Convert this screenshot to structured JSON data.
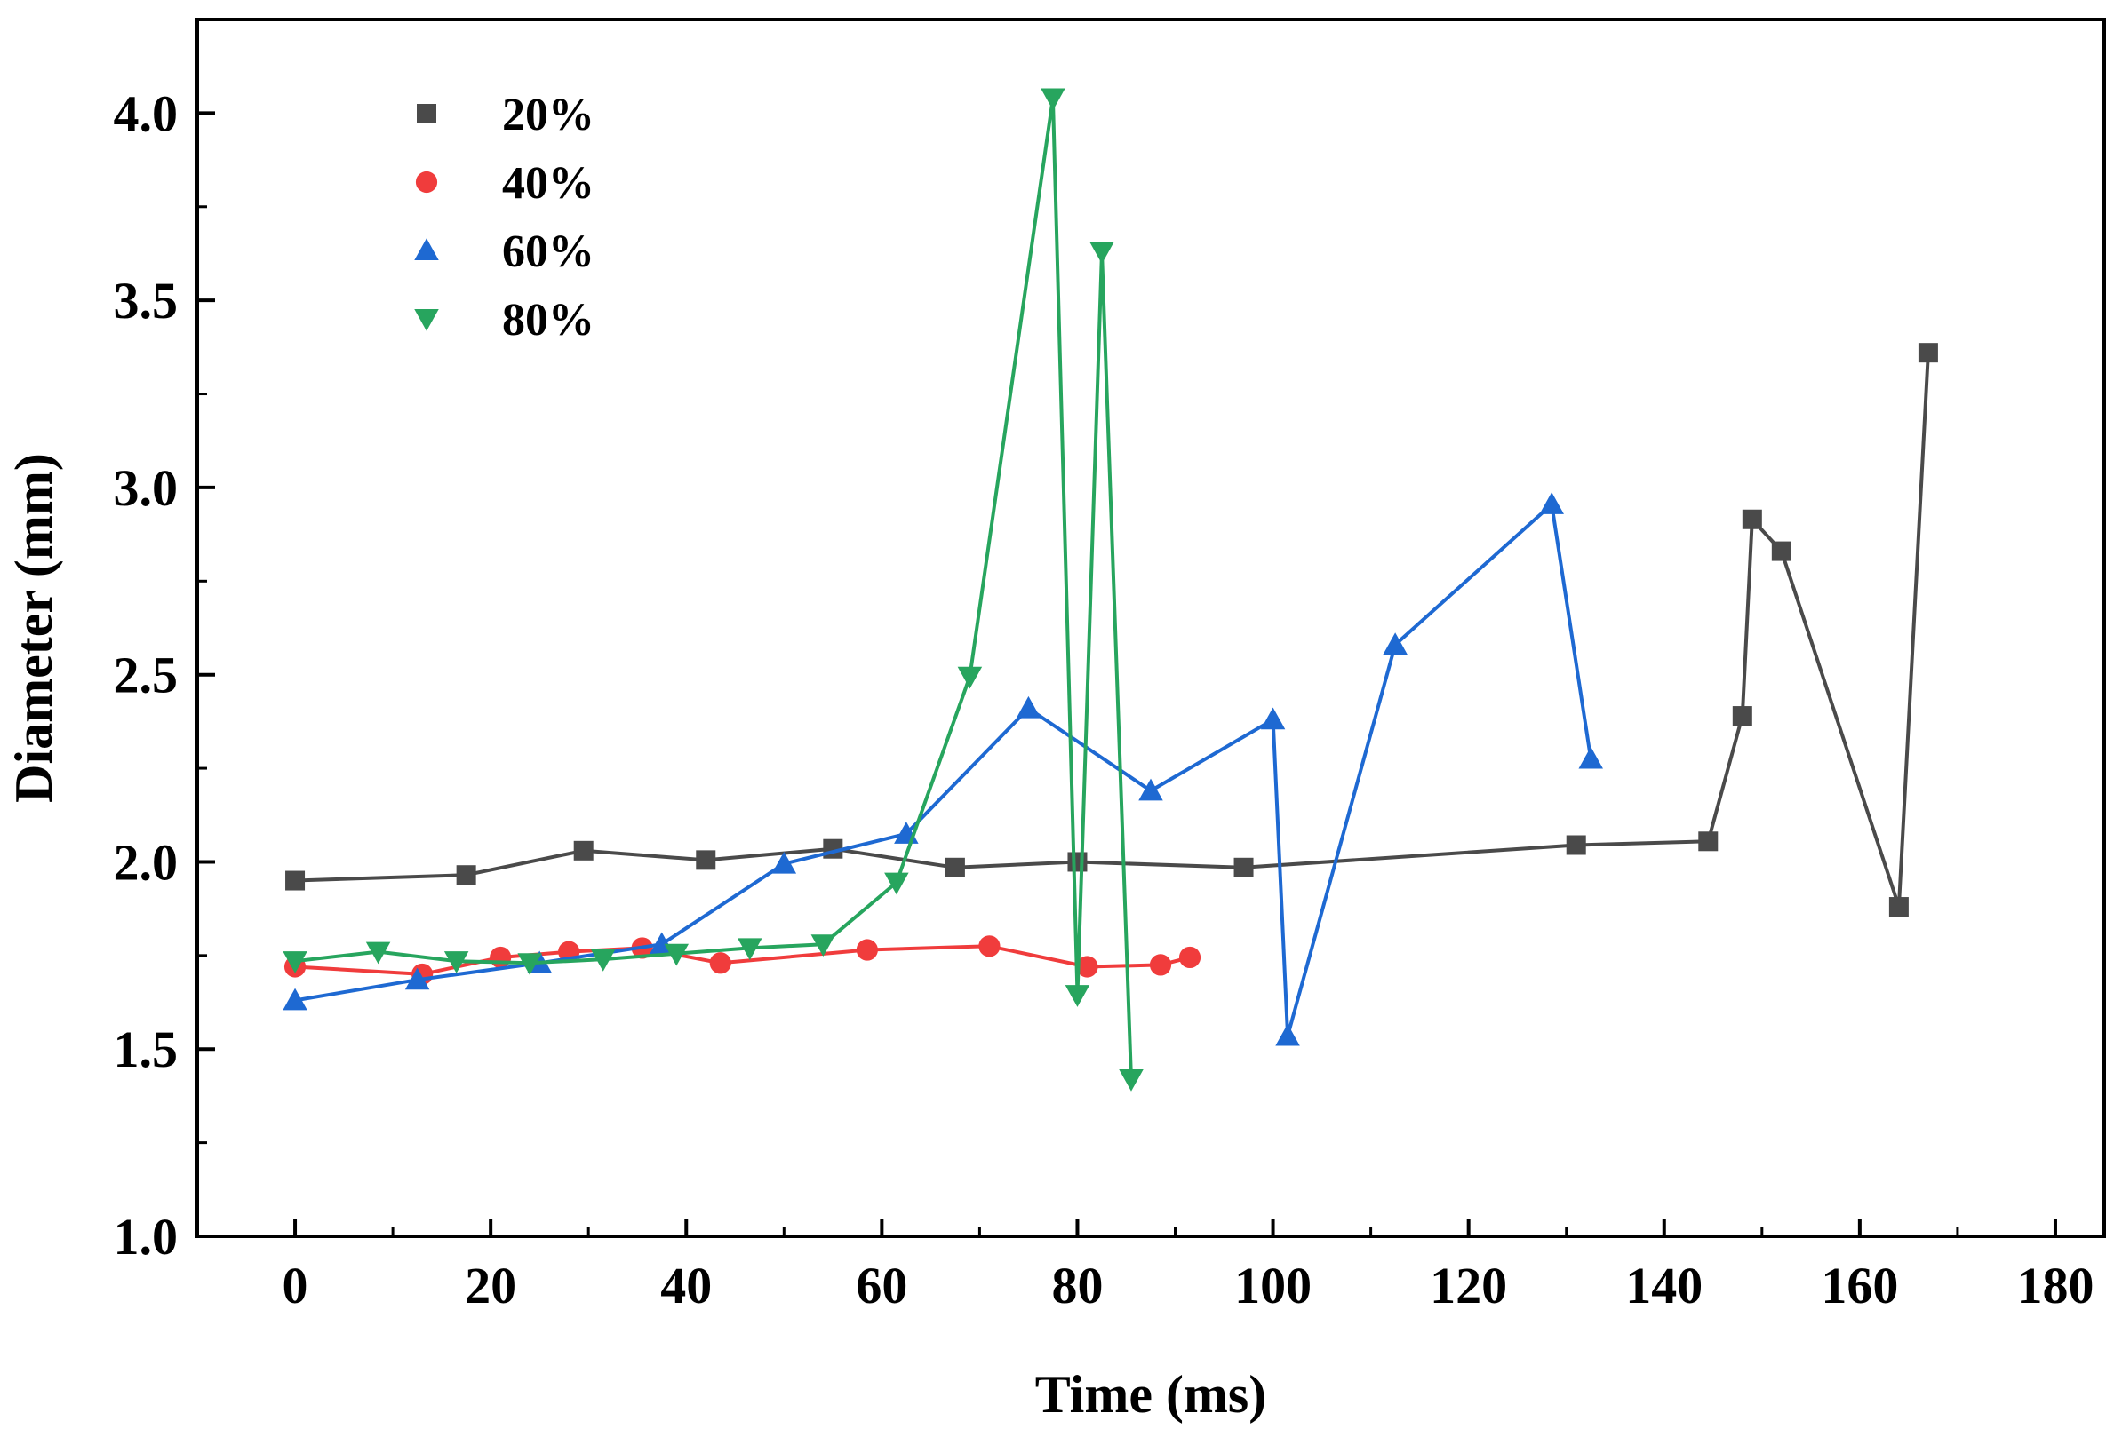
{
  "chart_data": {
    "type": "line",
    "title": "",
    "xlabel": "Time (ms)",
    "ylabel": "Diameter (mm)",
    "xlim": [
      -10,
      185
    ],
    "ylim": [
      1.0,
      4.25
    ],
    "xticks": [
      0,
      20,
      40,
      60,
      80,
      100,
      120,
      140,
      160,
      180
    ],
    "xtick_labels": [
      "0",
      "20",
      "40",
      "60",
      "80",
      "100",
      "120",
      "140",
      "160",
      "180"
    ],
    "yticks": [
      1.0,
      1.5,
      2.0,
      2.5,
      3.0,
      3.5,
      4.0
    ],
    "ytick_labels": [
      "1.0",
      "1.5",
      "2.0",
      "2.5",
      "3.0",
      "3.5",
      "4.0"
    ],
    "grid": false,
    "legend_position": "top-left",
    "series": [
      {
        "name": "20%",
        "marker": "square",
        "color": "#4a4a4a",
        "x": [
          0,
          17.5,
          29.5,
          42,
          55,
          67.5,
          80,
          97,
          131,
          144.5,
          148,
          149,
          152,
          164,
          167
        ],
        "y": [
          1.95,
          1.965,
          2.03,
          2.005,
          2.035,
          1.985,
          2.0,
          1.985,
          2.045,
          2.055,
          2.39,
          2.915,
          2.83,
          1.88,
          3.36
        ]
      },
      {
        "name": "40%",
        "marker": "circle",
        "color": "#f03c3c",
        "x": [
          0,
          13,
          21,
          28,
          35.5,
          43.5,
          58.5,
          71,
          81,
          88.5,
          91.5
        ],
        "y": [
          1.72,
          1.7,
          1.745,
          1.76,
          1.77,
          1.73,
          1.765,
          1.775,
          1.72,
          1.725,
          1.745
        ]
      },
      {
        "name": "60%",
        "marker": "triangle-up",
        "color": "#1e69d2",
        "x": [
          0,
          12.5,
          25,
          37.5,
          50,
          62.5,
          75,
          87.5,
          100,
          101.5,
          112.5,
          128.5,
          132.5
        ],
        "y": [
          1.63,
          1.685,
          1.73,
          1.78,
          1.995,
          2.075,
          2.41,
          2.19,
          2.38,
          1.535,
          2.58,
          2.955,
          2.275
        ]
      },
      {
        "name": "80%",
        "marker": "triangle-down",
        "color": "#27a55e",
        "x": [
          0,
          8.5,
          16.5,
          24,
          31.5,
          39,
          46.5,
          54,
          61.5,
          69,
          77.5,
          80,
          82.5,
          85.5
        ],
        "y": [
          1.735,
          1.76,
          1.735,
          1.73,
          1.74,
          1.755,
          1.77,
          1.78,
          1.945,
          2.495,
          4.04,
          1.645,
          3.63,
          1.42
        ]
      }
    ]
  }
}
